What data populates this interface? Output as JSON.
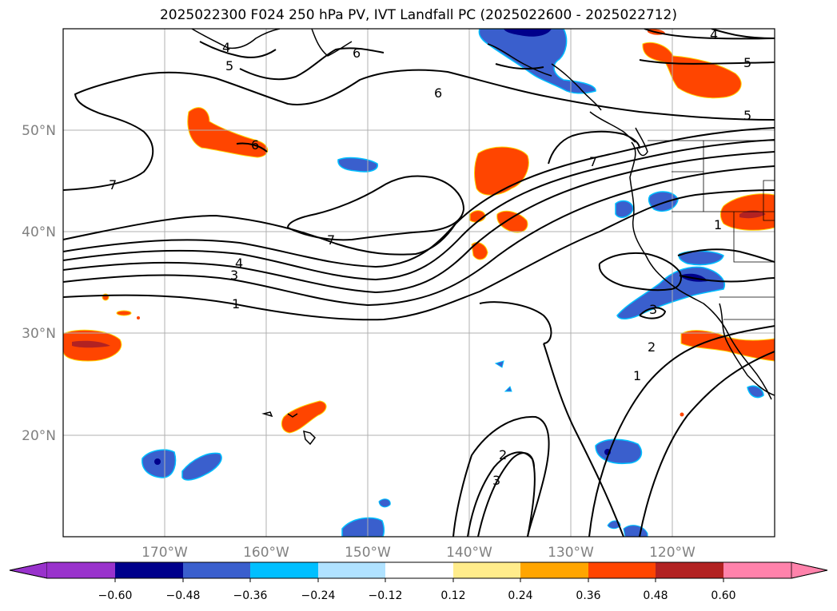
{
  "title": "2025022300 F024 250 hPa PV, IVT Landfall PC (2025022600 - 2025022712)",
  "map": {
    "projection": "PlateCarree",
    "lon_range": [
      -180,
      -110
    ],
    "lat_range": [
      10,
      60
    ],
    "gridlines": true,
    "lon_ticks": [
      {
        "lon": -170,
        "label": "170°W"
      },
      {
        "lon": -160,
        "label": "160°W"
      },
      {
        "lon": -150,
        "label": "150°W"
      },
      {
        "lon": -140,
        "label": "140°W"
      },
      {
        "lon": -130,
        "label": "130°W"
      },
      {
        "lon": -120,
        "label": "120°W"
      }
    ],
    "lat_ticks": [
      {
        "lat": 50,
        "label": "50°N"
      },
      {
        "lat": 40,
        "label": "40°N"
      },
      {
        "lat": 30,
        "label": "30°N"
      },
      {
        "lat": 20,
        "label": "20°N"
      }
    ]
  },
  "colorbar": {
    "extend": "both",
    "boundaries": [
      -0.6,
      -0.48,
      -0.36,
      -0.24,
      -0.12,
      0.12,
      0.24,
      0.36,
      0.48,
      0.6
    ],
    "labels": [
      "−0.60",
      "−0.48",
      "−0.36",
      "−0.24",
      "−0.12",
      "0.12",
      "0.24",
      "0.36",
      "0.48",
      "0.60"
    ],
    "colors": {
      "under": "#9932cc",
      "bins": [
        "#00008b",
        "#3a5fcd",
        "#00bfff",
        "#b0e2ff",
        "#ffffff",
        "#ffec8b",
        "#ffa500",
        "#ff4500",
        "#b22222"
      ],
      "over": "#ff82ab"
    }
  },
  "pv_contour_labels": [
    "1",
    "2",
    "3",
    "4",
    "5",
    "6",
    "7"
  ]
}
